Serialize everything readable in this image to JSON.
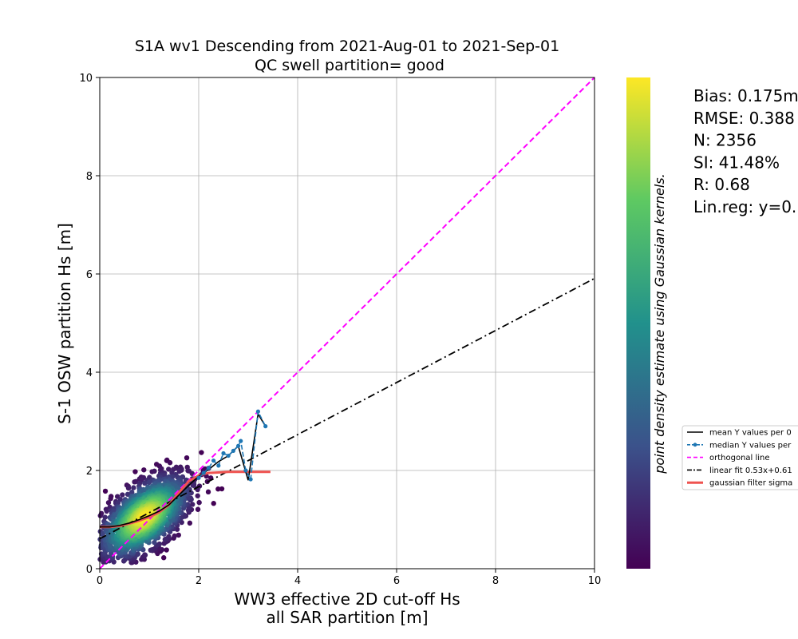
{
  "chart_data": {
    "type": "scatter",
    "title": "S1A wv1 Descending from 2021-Aug-01 to 2021-Sep-01",
    "subtitle": "QC swell partition= good",
    "xlabel_line1": "WW3 effective 2D cut-off Hs",
    "xlabel_line2": "all SAR partition [m]",
    "ylabel": "S-1 OSW partition Hs [m]",
    "xlim": [
      0,
      10
    ],
    "ylim": [
      0,
      10
    ],
    "xticks": [
      "0",
      "2",
      "4",
      "6",
      "8",
      "10"
    ],
    "yticks": [
      "0",
      "2",
      "4",
      "6",
      "8",
      "10"
    ],
    "grid": true,
    "colorbar": {
      "label": "point density estimate using Gaussian kernels.",
      "colormap": "viridis",
      "colors": [
        "#440154",
        "#3b528b",
        "#21918c",
        "#5ec962",
        "#fde725"
      ]
    },
    "stats": [
      "Bias: 0.175m",
      "RMSE: 0.388",
      "N: 2356",
      "SI: 41.48%",
      "R: 0.68",
      "Lin.reg: y=0."
    ],
    "legend": {
      "placement": "center-right outside",
      "entries": [
        {
          "key": "mean",
          "label": "mean Y values per 0",
          "color": "#000000",
          "style": "solid"
        },
        {
          "key": "median",
          "label": "median Y values per",
          "color": "#1f77b4",
          "style": "solid-markers"
        },
        {
          "key": "orthogonal",
          "label": "orthogonal line",
          "color": "#ff00ff",
          "style": "dashed"
        },
        {
          "key": "linfit",
          "label": "linear fit 0.53x+0.61",
          "color": "#000000",
          "style": "dashdot"
        },
        {
          "key": "gaussian",
          "label": "gaussian filter sigma",
          "color": "#ef5350",
          "style": "solid-thick"
        }
      ]
    },
    "series": {
      "orthogonal_line": {
        "x": [
          0,
          10
        ],
        "y": [
          0,
          10
        ]
      },
      "linear_fit": {
        "slope": 0.53,
        "intercept": 0.61,
        "x": [
          0,
          10
        ]
      },
      "mean_y": {
        "x": [
          0.0,
          0.2,
          0.4,
          0.6,
          0.8,
          1.0,
          1.2,
          1.4,
          1.6,
          1.8,
          2.0,
          2.2,
          2.4,
          2.6,
          2.8,
          3.0,
          3.2,
          3.35
        ],
        "y": [
          0.85,
          0.85,
          0.88,
          0.93,
          1.0,
          1.08,
          1.17,
          1.3,
          1.5,
          1.7,
          1.88,
          2.02,
          2.18,
          2.3,
          2.5,
          1.8,
          3.15,
          2.9
        ]
      },
      "median_y": {
        "x": [
          2.0,
          2.1,
          2.2,
          2.3,
          2.4,
          2.5,
          2.6,
          2.7,
          2.8,
          2.85,
          2.95,
          3.05,
          3.2,
          3.35
        ],
        "y": [
          1.85,
          1.95,
          2.05,
          2.2,
          2.1,
          2.35,
          2.3,
          2.4,
          2.5,
          2.6,
          2.0,
          1.82,
          3.2,
          2.9
        ]
      },
      "gaussian_filter": {
        "x": [
          0.0,
          0.2,
          0.4,
          0.6,
          0.8,
          1.0,
          1.2,
          1.4,
          1.6,
          1.8,
          2.0,
          2.2,
          2.4,
          2.6,
          2.8,
          3.0,
          3.2,
          3.45
        ],
        "y": [
          0.85,
          0.85,
          0.87,
          0.92,
          0.98,
          1.05,
          1.15,
          1.3,
          1.55,
          1.78,
          1.9,
          1.95,
          1.96,
          1.97,
          1.97,
          1.97,
          1.97,
          1.97
        ]
      },
      "scatter_cloud": {
        "center": [
          0.9,
          1.05
        ],
        "spread_major": 0.55,
        "spread_minor": 0.28,
        "n_points": 2356
      }
    }
  }
}
